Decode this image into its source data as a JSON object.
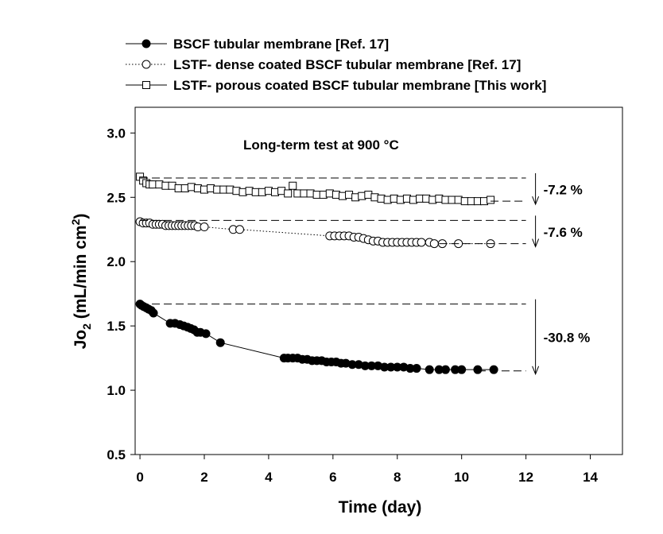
{
  "chart_data": {
    "type": "scatter-line",
    "x_label": "Time (day)",
    "y_label": [
      "Jo",
      "2",
      " (mL/min cm",
      "2",
      ")"
    ],
    "text_annotation": "Long-term test at 900 °C",
    "xlim": [
      -0.15,
      15
    ],
    "xticks": [
      0,
      2,
      4,
      6,
      8,
      10,
      12,
      14
    ],
    "ylim": [
      0.5,
      3.2
    ],
    "yticks": [
      {
        "value": 0.5,
        "label": "0.5"
      },
      {
        "value": 1.0,
        "label": "1.0"
      },
      {
        "value": 1.5,
        "label": "1.5"
      },
      {
        "value": 2.0,
        "label": "2.0"
      },
      {
        "value": 2.5,
        "label": "2.5"
      },
      {
        "value": 3.0,
        "label": "3.0"
      }
    ],
    "legend": "top-left-outside",
    "series": [
      {
        "name": "BSCF tubular membrane [Ref. 17]",
        "color": "#000000",
        "line": "solid",
        "marker": "filled-circle",
        "x": [
          0,
          0.05,
          0.12,
          0.2,
          0.27,
          0.35,
          0.42,
          0.94,
          1.09,
          1.24,
          1.36,
          1.48,
          1.58,
          1.68,
          1.78,
          1.88,
          2.05,
          2.5,
          4.48,
          4.6,
          4.75,
          4.9,
          5.05,
          5.2,
          5.35,
          5.5,
          5.65,
          5.8,
          5.95,
          6.1,
          6.25,
          6.4,
          6.6,
          6.8,
          7.0,
          7.2,
          7.4,
          7.6,
          7.8,
          8.0,
          8.2,
          8.4,
          8.6,
          9.0,
          9.3,
          9.5,
          9.8,
          10.0,
          10.5,
          11.0
        ],
        "values": [
          1.67,
          1.66,
          1.65,
          1.64,
          1.63,
          1.62,
          1.6,
          1.52,
          1.52,
          1.51,
          1.5,
          1.49,
          1.48,
          1.47,
          1.45,
          1.45,
          1.44,
          1.37,
          1.25,
          1.25,
          1.25,
          1.25,
          1.24,
          1.24,
          1.23,
          1.23,
          1.23,
          1.22,
          1.22,
          1.22,
          1.21,
          1.21,
          1.2,
          1.2,
          1.19,
          1.19,
          1.19,
          1.18,
          1.18,
          1.18,
          1.18,
          1.17,
          1.17,
          1.16,
          1.16,
          1.16,
          1.16,
          1.16,
          1.16,
          1.16
        ]
      },
      {
        "name": "LSTF- dense coated BSCF tubular membrane [Ref. 17]",
        "color": "#000000",
        "line": "dotted",
        "marker": "open-circle",
        "x": [
          0,
          0.1,
          0.2,
          0.3,
          0.4,
          0.5,
          0.6,
          0.7,
          0.8,
          0.9,
          1.0,
          1.1,
          1.2,
          1.3,
          1.4,
          1.5,
          1.6,
          1.7,
          1.8,
          2.0,
          2.9,
          3.1,
          5.9,
          6.05,
          6.2,
          6.35,
          6.5,
          6.65,
          6.8,
          6.95,
          7.1,
          7.25,
          7.4,
          7.55,
          7.7,
          7.85,
          8.0,
          8.15,
          8.3,
          8.45,
          8.6,
          8.75,
          9.0,
          9.15,
          9.4,
          9.9,
          10.9
        ],
        "values": [
          2.31,
          2.3,
          2.3,
          2.3,
          2.29,
          2.29,
          2.29,
          2.29,
          2.28,
          2.28,
          2.28,
          2.28,
          2.28,
          2.28,
          2.28,
          2.28,
          2.28,
          2.28,
          2.27,
          2.27,
          2.25,
          2.25,
          2.2,
          2.2,
          2.2,
          2.2,
          2.2,
          2.19,
          2.19,
          2.18,
          2.17,
          2.16,
          2.16,
          2.15,
          2.15,
          2.15,
          2.15,
          2.15,
          2.15,
          2.15,
          2.15,
          2.15,
          2.15,
          2.14,
          2.14,
          2.14,
          2.14
        ]
      },
      {
        "name": "LSTF- porous coated BSCF tubular membrane [This work]",
        "color": "#000000",
        "line": "solid",
        "marker": "open-square",
        "x": [
          0,
          0.1,
          0.2,
          0.3,
          0.4,
          0.6,
          0.8,
          1.0,
          1.2,
          1.4,
          1.6,
          1.8,
          2.0,
          2.2,
          2.4,
          2.6,
          2.8,
          3.0,
          3.2,
          3.4,
          3.6,
          3.8,
          4.0,
          4.2,
          4.4,
          4.6,
          4.75,
          4.9,
          5.1,
          5.3,
          5.5,
          5.7,
          5.9,
          6.1,
          6.3,
          6.5,
          6.7,
          6.9,
          7.1,
          7.3,
          7.5,
          7.7,
          7.9,
          8.1,
          8.3,
          8.5,
          8.7,
          8.9,
          9.1,
          9.3,
          9.5,
          9.7,
          9.9,
          10.1,
          10.3,
          10.5,
          10.7,
          10.9
        ],
        "values": [
          2.66,
          2.63,
          2.61,
          2.6,
          2.6,
          2.6,
          2.59,
          2.59,
          2.57,
          2.57,
          2.58,
          2.57,
          2.56,
          2.57,
          2.56,
          2.56,
          2.56,
          2.55,
          2.54,
          2.55,
          2.54,
          2.54,
          2.55,
          2.54,
          2.55,
          2.53,
          2.59,
          2.53,
          2.53,
          2.53,
          2.52,
          2.52,
          2.53,
          2.52,
          2.51,
          2.52,
          2.5,
          2.51,
          2.52,
          2.5,
          2.49,
          2.48,
          2.49,
          2.48,
          2.49,
          2.48,
          2.49,
          2.49,
          2.48,
          2.49,
          2.48,
          2.48,
          2.48,
          2.47,
          2.47,
          2.47,
          2.47,
          2.48
        ]
      }
    ],
    "change_annotations": [
      {
        "text": "-7.2 %",
        "top": 2.65,
        "bottom": 2.47,
        "from": 10.9,
        "to": 12
      },
      {
        "text": "-7.6 %",
        "top": 2.32,
        "bottom": 2.14,
        "from": 9.3,
        "to": 12
      },
      {
        "text": "-30.8 %",
        "top": 1.67,
        "bottom": 1.15,
        "from": 10.5,
        "to": 12
      }
    ]
  }
}
